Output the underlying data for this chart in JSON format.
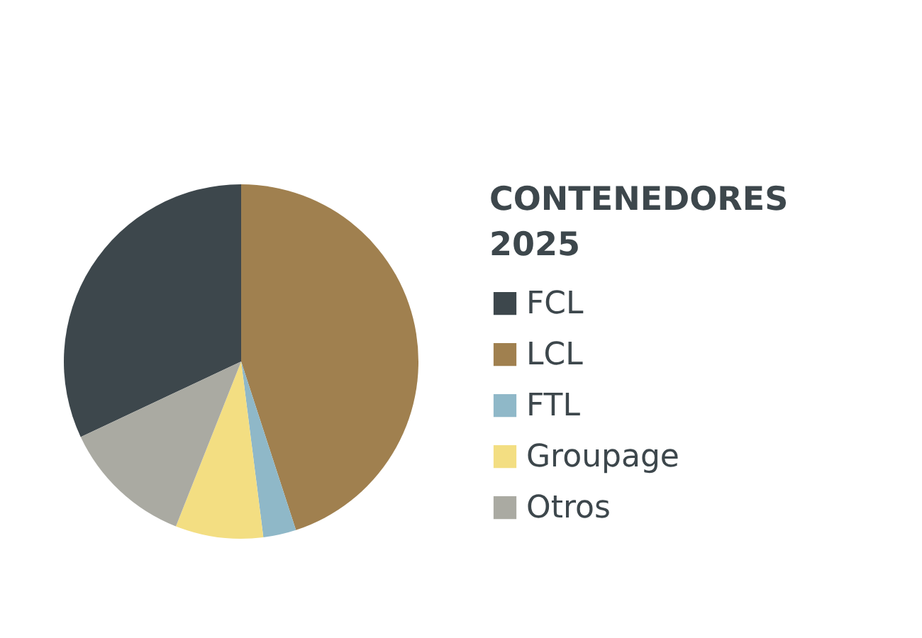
{
  "chart_data": {
    "type": "pie",
    "legend_title": "CONTENEDORES 2025",
    "legend": "right",
    "categories": [
      "FCL",
      "LCL",
      "FTL",
      "Groupage",
      "Otros"
    ],
    "values": [
      32,
      45,
      3,
      8,
      12
    ],
    "colors": [
      "#3d474c",
      "#a0804f",
      "#8fb8c8",
      "#f3de82",
      "#aaaaa2"
    ]
  }
}
